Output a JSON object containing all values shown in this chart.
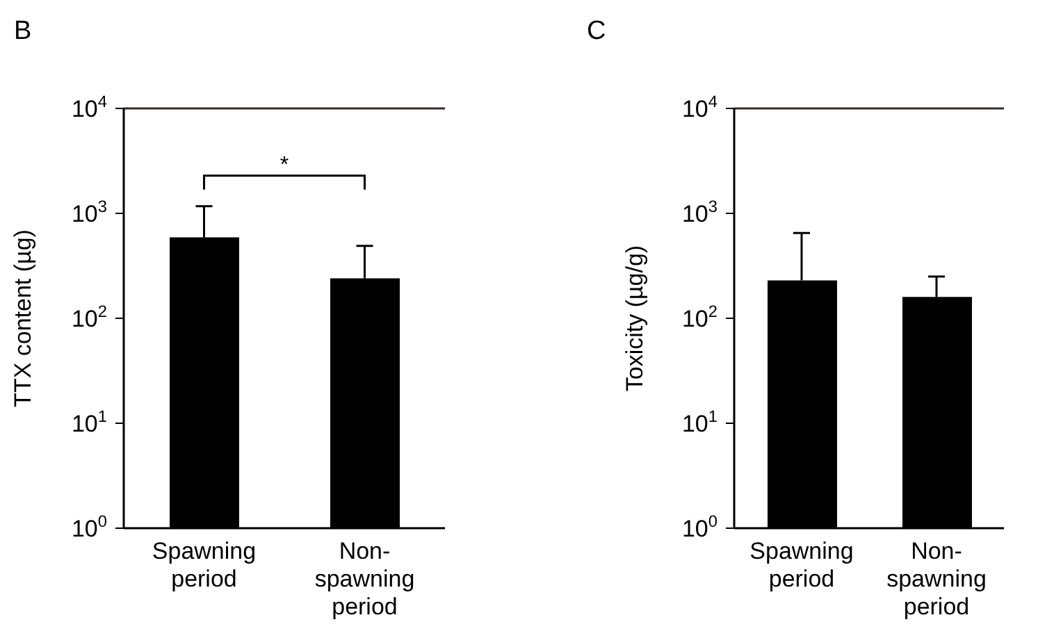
{
  "chart_data": [
    {
      "type": "bar",
      "title": "B",
      "ylabel": "TTX content (µg)",
      "categories": [
        "Spawning period",
        "Non-spawning period"
      ],
      "values": [
        590,
        240
      ],
      "color": "#000000",
      "errors": [
        [
          590,
          1170
        ],
        [
          240,
          490
        ]
      ],
      "ylim": [
        1,
        10000
      ],
      "yticks": [
        {
          "value": 1,
          "label": "10$^{0}$"
        },
        {
          "value": 10,
          "label": "10$^{1}$"
        },
        {
          "value": 100,
          "label": "10$^{2}$"
        },
        {
          "value": 1000,
          "label": "10$^{3}$"
        },
        {
          "value": 10000,
          "label": "10$^{4}$"
        }
      ],
      "log": "y",
      "annotations": [
        "*"
      ]
    },
    {
      "type": "bar",
      "title": "C",
      "ylabel": "Toxicity (µg/g)",
      "categories": [
        "Spawning period",
        "Non-spawning period"
      ],
      "values": [
        230,
        160
      ],
      "color": "#000000",
      "errors": [
        [
          230,
          650
        ],
        [
          160,
          250
        ]
      ],
      "ylim": [
        1,
        10000
      ],
      "yticks": [
        {
          "value": 1,
          "label": "10$^{0}$"
        },
        {
          "value": 10,
          "label": "10$^{1}$"
        },
        {
          "value": 100,
          "label": "10$^{2}$"
        },
        {
          "value": 1000,
          "label": "10$^{3}$"
        },
        {
          "value": 10000,
          "label": "10$^{4}$"
        }
      ],
      "log": "y"
    }
  ]
}
